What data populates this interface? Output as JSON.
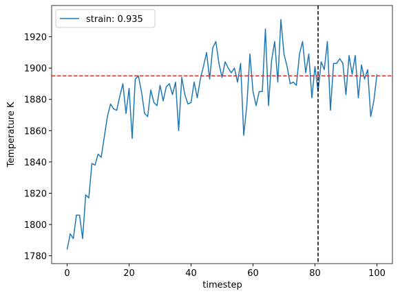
{
  "chart_data": {
    "type": "line",
    "xlabel": "timestep",
    "ylabel": "Temperature K",
    "x": [
      0,
      1,
      2,
      3,
      4,
      5,
      6,
      7,
      8,
      9,
      10,
      11,
      12,
      13,
      14,
      15,
      16,
      17,
      18,
      19,
      20,
      21,
      22,
      23,
      24,
      25,
      26,
      27,
      28,
      29,
      30,
      31,
      32,
      33,
      34,
      35,
      36,
      37,
      38,
      39,
      40,
      41,
      42,
      43,
      44,
      45,
      46,
      47,
      48,
      49,
      50,
      51,
      52,
      53,
      54,
      55,
      56,
      57,
      58,
      59,
      60,
      61,
      62,
      63,
      64,
      65,
      66,
      67,
      68,
      69,
      70,
      71,
      72,
      73,
      74,
      75,
      76,
      77,
      78,
      79,
      80,
      81,
      82,
      83,
      84,
      85,
      86,
      87,
      88,
      89,
      90,
      91,
      92,
      93,
      94,
      95,
      96,
      97,
      98,
      99,
      100
    ],
    "series": [
      {
        "name": "strain: 0.935",
        "color": "#1f77b4",
        "values": [
          1784,
          1794,
          1791,
          1806,
          1806,
          1791,
          1819,
          1817,
          1839,
          1838,
          1845,
          1843,
          1856,
          1869,
          1877,
          1874,
          1873,
          1882,
          1890,
          1871,
          1887,
          1855,
          1893,
          1895,
          1885,
          1871,
          1869,
          1886,
          1878,
          1876,
          1889,
          1879,
          1888,
          1890,
          1883,
          1891,
          1860,
          1894,
          1883,
          1877,
          1878,
          1891,
          1881,
          1893,
          1901,
          1910,
          1893,
          1913,
          1917,
          1903,
          1894,
          1904,
          1900,
          1897,
          1900,
          1891,
          1903,
          1857,
          1876,
          1909,
          1885,
          1876,
          1885,
          1885,
          1925,
          1876,
          1905,
          1917,
          1891,
          1931,
          1909,
          1901,
          1890,
          1891,
          1889,
          1909,
          1917,
          1897,
          1909,
          1881,
          1901,
          1885,
          1904,
          1899,
          1917,
          1873,
          1903,
          1903,
          1906,
          1903,
          1883,
          1908,
          1896,
          1908,
          1881,
          1902,
          1893,
          1899,
          1869,
          1879,
          1896
        ]
      }
    ],
    "hline": {
      "y": 1895,
      "color": "#d62728"
    },
    "vline": {
      "x": 81,
      "color": "#000000"
    },
    "xlim": [
      -5,
      105
    ],
    "ylim": [
      1775,
      1940
    ],
    "xticks": [
      0,
      20,
      40,
      60,
      80,
      100
    ],
    "yticks": [
      1780,
      1800,
      1820,
      1840,
      1860,
      1880,
      1900,
      1920
    ],
    "legend": "upper left"
  }
}
